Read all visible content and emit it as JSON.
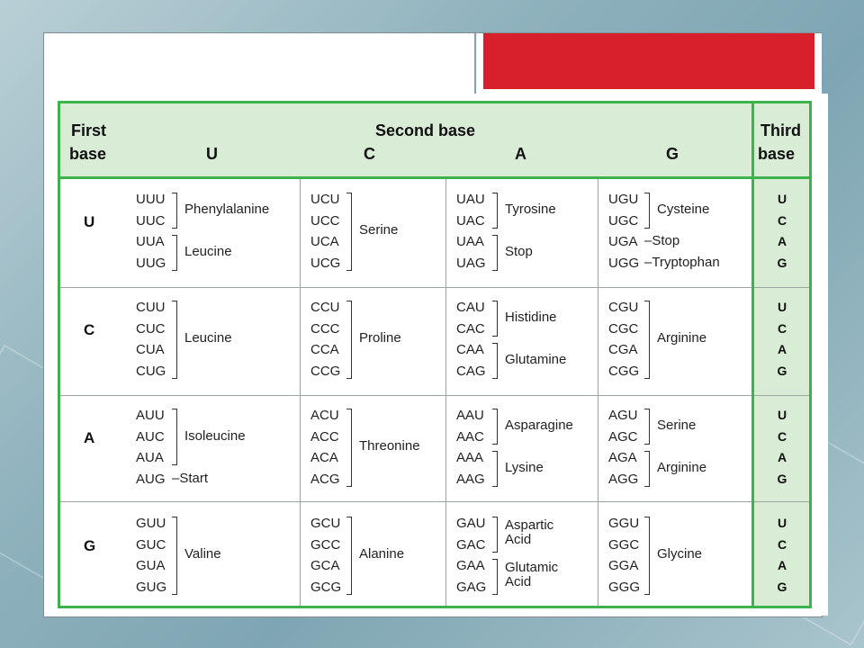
{
  "header": {
    "first_base": [
      "First",
      "base"
    ],
    "second_base": "Second base",
    "second_letters": [
      "U",
      "C",
      "A",
      "G"
    ],
    "third_base": [
      "Third",
      "base"
    ]
  },
  "first_letters": [
    "U",
    "C",
    "A",
    "G"
  ],
  "third_letters": [
    "U",
    "C",
    "A",
    "G"
  ],
  "groups": [
    {
      "row": 0,
      "col": 0,
      "codons": [
        "UUU",
        "UUC",
        "UUA",
        "UUG"
      ]
    },
    {
      "row": 0,
      "col": 1,
      "codons": [
        "UCU",
        "UCC",
        "UCA",
        "UCG"
      ]
    },
    {
      "row": 0,
      "col": 2,
      "codons": [
        "UAU",
        "UAC",
        "UAA",
        "UAG"
      ]
    },
    {
      "row": 0,
      "col": 3,
      "codons": [
        "UGU",
        "UGC",
        "UGA",
        "UGG"
      ]
    },
    {
      "row": 1,
      "col": 0,
      "codons": [
        "CUU",
        "CUC",
        "CUA",
        "CUG"
      ]
    },
    {
      "row": 1,
      "col": 1,
      "codons": [
        "CCU",
        "CCC",
        "CCA",
        "CCG"
      ]
    },
    {
      "row": 1,
      "col": 2,
      "codons": [
        "CAU",
        "CAC",
        "CAA",
        "CAG"
      ]
    },
    {
      "row": 1,
      "col": 3,
      "codons": [
        "CGU",
        "CGC",
        "CGA",
        "CGG"
      ]
    },
    {
      "row": 2,
      "col": 0,
      "codons": [
        "AUU",
        "AUC",
        "AUA",
        "AUG"
      ]
    },
    {
      "row": 2,
      "col": 1,
      "codons": [
        "ACU",
        "ACC",
        "ACA",
        "ACG"
      ]
    },
    {
      "row": 2,
      "col": 2,
      "codons": [
        "AAU",
        "AAC",
        "AAA",
        "AAG"
      ]
    },
    {
      "row": 2,
      "col": 3,
      "codons": [
        "AGU",
        "AGC",
        "AGA",
        "AGG"
      ]
    },
    {
      "row": 3,
      "col": 0,
      "codons": [
        "GUU",
        "GUC",
        "GUA",
        "GUG"
      ]
    },
    {
      "row": 3,
      "col": 1,
      "codons": [
        "GCU",
        "GCC",
        "GCA",
        "GCG"
      ]
    },
    {
      "row": 3,
      "col": 2,
      "codons": [
        "GAU",
        "GAC",
        "GAA",
        "GAG"
      ]
    },
    {
      "row": 3,
      "col": 3,
      "codons": [
        "GGU",
        "GGC",
        "GGA",
        "GGG"
      ]
    }
  ],
  "amino_acids": [
    {
      "row": 0,
      "col": 0,
      "from": 0,
      "to": 1,
      "name": "Phenylalanine"
    },
    {
      "row": 0,
      "col": 0,
      "from": 2,
      "to": 3,
      "name": "Leucine"
    },
    {
      "row": 0,
      "col": 1,
      "from": 0,
      "to": 3,
      "name": "Serine"
    },
    {
      "row": 0,
      "col": 2,
      "from": 0,
      "to": 1,
      "name": "Tyrosine"
    },
    {
      "row": 0,
      "col": 2,
      "from": 2,
      "to": 3,
      "name": "Stop"
    },
    {
      "row": 0,
      "col": 3,
      "from": 0,
      "to": 1,
      "name": "Cysteine"
    },
    {
      "row": 0,
      "col": 3,
      "from": 2,
      "to": 2,
      "name": "–Stop"
    },
    {
      "row": 0,
      "col": 3,
      "from": 3,
      "to": 3,
      "name": "–Tryptophan"
    },
    {
      "row": 1,
      "col": 0,
      "from": 0,
      "to": 3,
      "name": "Leucine"
    },
    {
      "row": 1,
      "col": 1,
      "from": 0,
      "to": 3,
      "name": "Proline"
    },
    {
      "row": 1,
      "col": 2,
      "from": 0,
      "to": 1,
      "name": "Histidine"
    },
    {
      "row": 1,
      "col": 2,
      "from": 2,
      "to": 3,
      "name": "Glutamine"
    },
    {
      "row": 1,
      "col": 3,
      "from": 0,
      "to": 3,
      "name": "Arginine"
    },
    {
      "row": 2,
      "col": 0,
      "from": 0,
      "to": 2,
      "name": "Isoleucine"
    },
    {
      "row": 2,
      "col": 0,
      "from": 3,
      "to": 3,
      "name": "–Start"
    },
    {
      "row": 2,
      "col": 1,
      "from": 0,
      "to": 3,
      "name": "Threonine"
    },
    {
      "row": 2,
      "col": 2,
      "from": 0,
      "to": 1,
      "name": "Asparagine"
    },
    {
      "row": 2,
      "col": 2,
      "from": 2,
      "to": 3,
      "name": "Lysine"
    },
    {
      "row": 2,
      "col": 3,
      "from": 0,
      "to": 1,
      "name": "Serine"
    },
    {
      "row": 2,
      "col": 3,
      "from": 2,
      "to": 3,
      "name": "Arginine"
    },
    {
      "row": 3,
      "col": 0,
      "from": 0,
      "to": 3,
      "name": "Valine"
    },
    {
      "row": 3,
      "col": 1,
      "from": 0,
      "to": 3,
      "name": "Alanine"
    },
    {
      "row": 3,
      "col": 2,
      "from": 0,
      "to": 1,
      "name": "Aspartic Acid"
    },
    {
      "row": 3,
      "col": 2,
      "from": 2,
      "to": 3,
      "name": "Glutamic Acid"
    },
    {
      "row": 3,
      "col": 3,
      "from": 0,
      "to": 3,
      "name": "Glycine"
    }
  ],
  "colors": {
    "table_border": "#3db34d",
    "header_fill": "#d9ecd6",
    "title_block": "#d8202c"
  }
}
